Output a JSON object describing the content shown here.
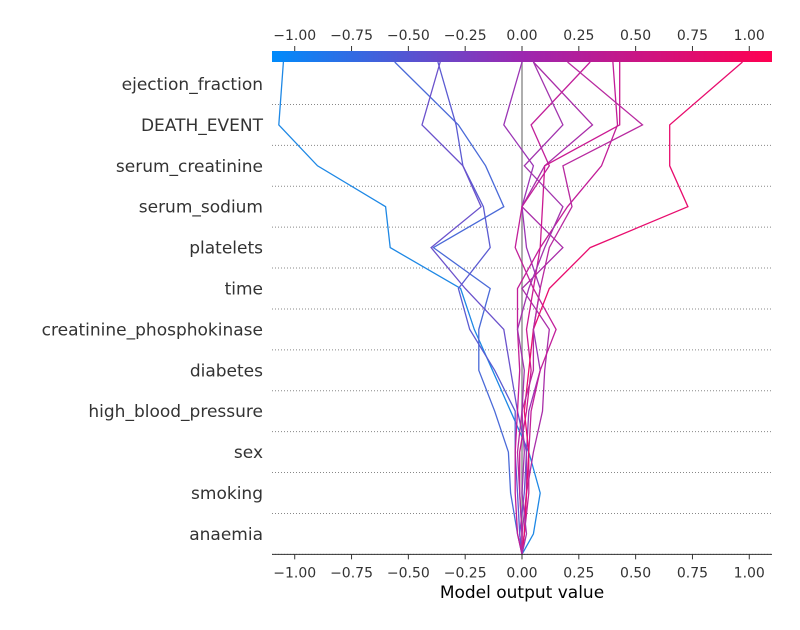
{
  "chart_data": {
    "type": "line",
    "title": "",
    "xlabel": "Model output value",
    "ylabel": "",
    "xlim": [
      -1.1,
      1.1
    ],
    "xticks": [
      -1.0,
      -0.75,
      -0.5,
      -0.25,
      0.0,
      0.25,
      0.5,
      0.75,
      1.0
    ],
    "xtick_labels": [
      "−1.00",
      "−0.75",
      "−0.50",
      "−0.25",
      "0.00",
      "0.25",
      "0.50",
      "0.75",
      "1.00"
    ],
    "base_value": 0.0,
    "features_top_to_bottom": [
      "ejection_fraction",
      "DEATH_EVENT",
      "serum_creatinine",
      "serum_sodium",
      "platelets",
      "time",
      "creatinine_phosphokinase",
      "diabetes",
      "high_blood_pressure",
      "sex",
      "smoking",
      "anaemia"
    ],
    "colorbar": {
      "low_color": "#008bfb",
      "mid_color": "#9c27b0",
      "high_color": "#ff0051",
      "range": [
        -1.1,
        1.1
      ]
    },
    "grid": "dotted-horizontal",
    "legend": "none",
    "series": [
      {
        "output": -1.05,
        "color": "#1e88e5",
        "path_bottom_to_top": [
          0.0,
          0.05,
          0.08,
          0.03,
          -0.05,
          -0.13,
          -0.21,
          -0.27,
          -0.58,
          -0.6,
          -0.9,
          -1.07,
          -1.05
        ]
      },
      {
        "output": -0.56,
        "color": "#4a6ad8",
        "path_bottom_to_top": [
          0.0,
          -0.02,
          -0.05,
          -0.06,
          -0.12,
          -0.19,
          -0.19,
          -0.14,
          -0.39,
          -0.08,
          -0.16,
          -0.28,
          -0.56
        ]
      },
      {
        "output": -0.37,
        "color": "#5b5bd2",
        "path_bottom_to_top": [
          0.0,
          -0.01,
          -0.02,
          -0.03,
          -0.03,
          -0.12,
          -0.23,
          -0.28,
          -0.14,
          -0.17,
          -0.26,
          -0.29,
          -0.37
        ]
      },
      {
        "output": -0.36,
        "color": "#6b52cc",
        "path_bottom_to_top": [
          0.0,
          -0.01,
          0.01,
          0.02,
          -0.02,
          -0.05,
          -0.08,
          -0.25,
          -0.4,
          -0.18,
          -0.26,
          -0.44,
          -0.36
        ]
      },
      {
        "output": 0.0,
        "color": "#9b35b5",
        "path_bottom_to_top": [
          0.0,
          0.01,
          0.02,
          0.02,
          0.03,
          0.08,
          0.05,
          0.08,
          0.02,
          0.0,
          0.05,
          -0.08,
          0.0
        ]
      },
      {
        "output": 0.4,
        "color": "#c21d98",
        "path_bottom_to_top": [
          0.0,
          -0.02,
          -0.03,
          -0.03,
          -0.02,
          -0.01,
          -0.02,
          -0.02,
          0.08,
          0.2,
          0.35,
          0.42,
          0.4
        ]
      },
      {
        "output": 0.05,
        "color": "#a92ea9",
        "path_bottom_to_top": [
          0.0,
          0.0,
          0.02,
          0.05,
          0.09,
          0.1,
          0.12,
          0.0,
          0.18,
          0.0,
          0.1,
          0.31,
          0.05
        ]
      },
      {
        "output": 0.3,
        "color": "#c2209a",
        "path_bottom_to_top": [
          0.0,
          0.01,
          0.03,
          0.03,
          0.04,
          0.08,
          0.15,
          0.05,
          -0.03,
          0.0,
          0.12,
          0.04,
          0.3
        ]
      },
      {
        "output": 0.43,
        "color": "#ca1a92",
        "path_bottom_to_top": [
          0.0,
          0.0,
          -0.01,
          -0.01,
          0.02,
          0.04,
          0.02,
          0.05,
          0.08,
          0.09,
          0.1,
          0.43,
          0.43
        ]
      },
      {
        "output": 0.97,
        "color": "#e80d6e",
        "path_bottom_to_top": [
          0.0,
          0.01,
          0.02,
          0.03,
          0.01,
          0.03,
          0.05,
          0.12,
          0.3,
          0.73,
          0.65,
          0.65,
          0.97
        ]
      },
      {
        "output": 0.2,
        "color": "#b82aa0",
        "path_bottom_to_top": [
          0.0,
          0.0,
          -0.01,
          -0.02,
          0.0,
          0.05,
          0.05,
          0.08,
          0.12,
          0.22,
          0.18,
          0.53,
          0.2
        ]
      },
      {
        "output": 0.05,
        "color": "#a234ae",
        "path_bottom_to_top": [
          0.0,
          0.02,
          0.0,
          0.01,
          0.0,
          0.01,
          -0.02,
          0.03,
          0.1,
          0.18,
          0.01,
          0.18,
          0.05
        ]
      }
    ]
  }
}
